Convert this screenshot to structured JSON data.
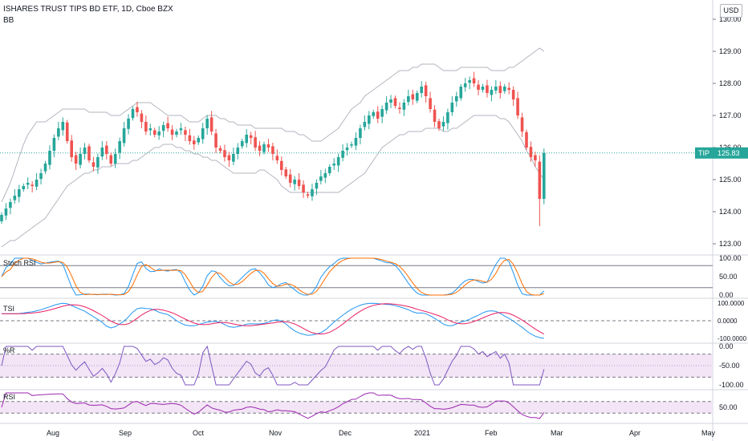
{
  "header": {
    "title": "ISHARES TRUST TIPS BD ETF, 1D, Cboe BZX",
    "indicator": "BB",
    "currency": "USD"
  },
  "price_tag": {
    "symbol": "TIP",
    "value": "125.83"
  },
  "colors": {
    "up": "#26a69a",
    "down": "#ef5350",
    "bb": "#b2b5be",
    "stoch_k": "#2196f3",
    "stoch_d": "#ff6d00",
    "tsi": "#2196f3",
    "tsi_signal": "#e91e63",
    "wr": "#7e57c2",
    "rsi": "#9c27b0",
    "band_fill": "#f3e5f5"
  },
  "x_axis": {
    "labels": [
      "Aug",
      "Sep",
      "Oct",
      "Nov",
      "Dec",
      "2021",
      "Feb",
      "Mar",
      "Apr",
      "May"
    ]
  },
  "panes": [
    {
      "name": "Stoch RSI",
      "ticks": [
        "100.00",
        "50.00",
        "0.00"
      ]
    },
    {
      "name": "TSI",
      "ticks": [
        "100.0000",
        "0.0000",
        "-100.0000"
      ]
    },
    {
      "name": "%R",
      "ticks": [
        "0.00",
        "-50.00",
        "-100.00"
      ]
    },
    {
      "name": "RSI",
      "ticks": [
        "50.00"
      ]
    }
  ],
  "chart_data": {
    "type": "candlestick",
    "title": "ISHARES TRUST TIPS BD ETF, 1D, Cboe BZX",
    "y_ticks": [
      "130.00",
      "129.00",
      "128.00",
      "127.00",
      "126.00",
      "125.00",
      "124.00",
      "123.00"
    ],
    "ylim": [
      122.7,
      130.4
    ],
    "last_price": 125.83,
    "closes": [
      123.9,
      124.1,
      124.3,
      124.5,
      124.7,
      124.8,
      124.9,
      124.8,
      125.0,
      125.2,
      125.5,
      125.9,
      126.3,
      126.6,
      126.8,
      126.2,
      125.7,
      125.5,
      125.8,
      126.0,
      125.6,
      125.4,
      125.7,
      126.0,
      125.8,
      125.5,
      125.8,
      126.2,
      126.6,
      126.9,
      127.2,
      127.1,
      126.8,
      126.5,
      126.6,
      126.4,
      126.5,
      126.7,
      126.6,
      126.4,
      126.5,
      126.6,
      126.4,
      126.2,
      126.1,
      126.3,
      126.6,
      126.9,
      126.5,
      126.0,
      125.9,
      125.7,
      125.6,
      125.8,
      126.0,
      126.2,
      126.4,
      126.3,
      126.0,
      125.9,
      126.1,
      126.0,
      125.8,
      125.6,
      125.3,
      125.1,
      124.9,
      125.0,
      124.8,
      124.6,
      124.5,
      124.7,
      124.9,
      125.1,
      125.2,
      125.4,
      125.5,
      125.7,
      125.9,
      126.0,
      126.1,
      126.3,
      126.6,
      126.8,
      127.0,
      127.1,
      126.9,
      127.2,
      127.4,
      127.5,
      127.3,
      127.2,
      127.4,
      127.6,
      127.5,
      127.7,
      127.9,
      127.6,
      127.2,
      126.8,
      126.6,
      126.8,
      127.1,
      127.4,
      127.6,
      127.9,
      128.0,
      128.1,
      128.0,
      127.8,
      127.9,
      127.7,
      127.8,
      127.9,
      127.7,
      127.9,
      127.8,
      127.5,
      127.0,
      126.5,
      126.0,
      125.7,
      125.6,
      124.4,
      125.83
    ],
    "bb_upper": [
      124.3,
      124.6,
      124.9,
      125.3,
      125.7,
      126.1,
      126.4,
      126.6,
      126.8,
      126.8,
      126.8,
      126.9,
      127.0,
      127.1,
      127.2,
      127.2,
      127.2,
      127.2,
      127.2,
      127.2,
      127.1,
      127.1,
      127.1,
      127.1,
      127.1,
      127.0,
      127.0,
      127.0,
      127.1,
      127.2,
      127.3,
      127.4,
      127.4,
      127.4,
      127.4,
      127.3,
      127.2,
      127.1,
      127.0,
      127.0,
      127.0,
      127.0,
      126.9,
      126.8,
      126.8,
      126.8,
      126.9,
      127.0,
      127.0,
      127.0,
      126.9,
      126.9,
      126.8,
      126.8,
      126.7,
      126.7,
      126.7,
      126.7,
      126.6,
      126.6,
      126.6,
      126.6,
      126.6,
      126.6,
      126.6,
      126.5,
      126.5,
      126.5,
      126.4,
      126.4,
      126.3,
      126.2,
      126.2,
      126.2,
      126.3,
      126.4,
      126.5,
      126.6,
      126.8,
      127.0,
      127.2,
      127.3,
      127.4,
      127.6,
      127.7,
      127.8,
      127.9,
      128.0,
      128.1,
      128.2,
      128.3,
      128.4,
      128.4,
      128.4,
      128.5,
      128.5,
      128.6,
      128.6,
      128.6,
      128.6,
      128.5,
      128.4,
      128.4,
      128.4,
      128.4,
      128.5,
      128.5,
      128.5,
      128.5,
      128.5,
      128.5,
      128.5,
      128.4,
      128.4,
      128.4,
      128.4,
      128.5,
      128.5,
      128.6,
      128.7,
      128.8,
      128.9,
      129.0,
      129.1,
      129.0
    ],
    "bb_lower": [
      122.9,
      123.0,
      123.1,
      123.1,
      123.2,
      123.3,
      123.4,
      123.5,
      123.6,
      123.7,
      123.8,
      124.0,
      124.2,
      124.4,
      124.6,
      124.8,
      124.9,
      125.0,
      125.1,
      125.2,
      125.2,
      125.3,
      125.3,
      125.4,
      125.4,
      125.4,
      125.5,
      125.5,
      125.5,
      125.5,
      125.6,
      125.6,
      125.7,
      125.8,
      125.9,
      126.0,
      126.0,
      126.1,
      126.1,
      126.1,
      126.0,
      126.0,
      125.9,
      125.9,
      125.8,
      125.8,
      125.7,
      125.7,
      125.6,
      125.6,
      125.5,
      125.4,
      125.3,
      125.2,
      125.2,
      125.2,
      125.2,
      125.2,
      125.2,
      125.3,
      125.3,
      125.2,
      125.1,
      125.0,
      124.8,
      124.7,
      124.6,
      124.6,
      124.6,
      124.6,
      124.6,
      124.6,
      124.6,
      124.6,
      124.6,
      124.6,
      124.6,
      124.6,
      124.7,
      124.8,
      124.9,
      125.0,
      125.1,
      125.2,
      125.4,
      125.6,
      125.8,
      126.0,
      126.1,
      126.2,
      126.3,
      126.4,
      126.4,
      126.5,
      126.5,
      126.5,
      126.5,
      126.6,
      126.6,
      126.6,
      126.6,
      126.5,
      126.5,
      126.6,
      126.6,
      126.7,
      126.8,
      126.9,
      127.0,
      127.0,
      127.0,
      127.0,
      127.0,
      127.0,
      126.9,
      126.9,
      126.8,
      126.6,
      126.4,
      126.2,
      125.9,
      125.7,
      125.4,
      125.2,
      125.0
    ]
  }
}
